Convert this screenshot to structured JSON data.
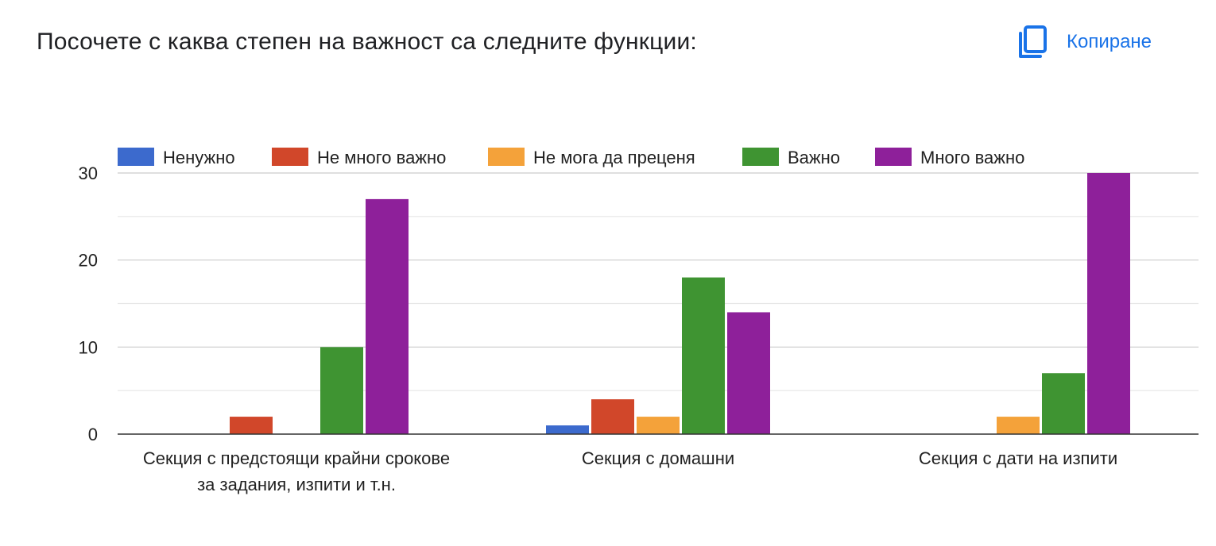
{
  "title": "Посочете с каква степен на важност са следните функции:",
  "copy_button": {
    "label": "Копиране",
    "icon": "copy-icon",
    "color": "#1a73e8"
  },
  "chart_data": {
    "type": "bar",
    "categories": [
      [
        "Секция с предстоящи крайни срокове",
        "за задания, изпити и т.н."
      ],
      [
        "Секция с домашни"
      ],
      [
        "Секция с дати на изпити"
      ]
    ],
    "series": [
      {
        "name": "Ненужно",
        "color": "#3c6acd",
        "values": [
          0,
          1,
          0
        ]
      },
      {
        "name": "Не много важно",
        "color": "#d1472a",
        "values": [
          2,
          4,
          0
        ]
      },
      {
        "name": "Не мога да преценя",
        "color": "#f4a23a",
        "values": [
          0,
          2,
          2
        ]
      },
      {
        "name": "Важно",
        "color": "#3f9432",
        "values": [
          10,
          18,
          7
        ]
      },
      {
        "name": "Много важно",
        "color": "#8e209a",
        "values": [
          27,
          14,
          30
        ]
      }
    ],
    "yticks": [
      0,
      10,
      20,
      30
    ],
    "ylim": [
      0,
      30
    ],
    "grid": true,
    "legend": "top"
  }
}
